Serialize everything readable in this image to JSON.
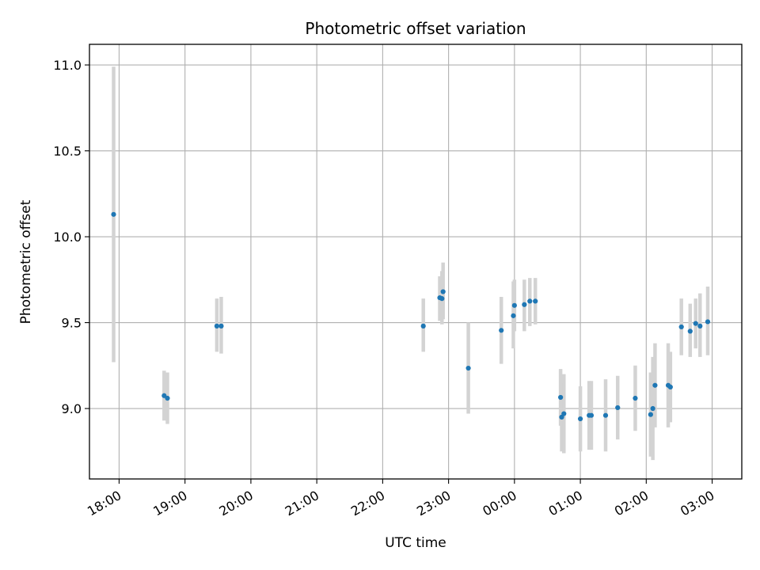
{
  "chart_data": {
    "type": "scatter",
    "title": "Photometric offset variation",
    "xlabel": "UTC time",
    "ylabel": "Photometric offset",
    "x_ticks": [
      "18:00",
      "19:00",
      "20:00",
      "21:00",
      "22:00",
      "23:00",
      "00:00",
      "01:00",
      "02:00",
      "03:00"
    ],
    "y_ticks": [
      "9.0",
      "9.5",
      "10.0",
      "10.5",
      "11.0"
    ],
    "x_range": [
      "17:33",
      "03:27"
    ],
    "ylim": [
      8.59,
      11.12
    ],
    "grid": true,
    "colors": {
      "points": "#1f77b4",
      "error_bars": "#d3d3d3",
      "grid": "#b0b0b0"
    },
    "points": [
      {
        "t": "17:55",
        "y": 10.13,
        "lo": 9.27,
        "hi": 10.99
      },
      {
        "t": "18:41",
        "y": 9.075,
        "lo": 8.93,
        "hi": 9.22
      },
      {
        "t": "18:44",
        "y": 9.06,
        "lo": 8.91,
        "hi": 9.21
      },
      {
        "t": "19:29",
        "y": 9.48,
        "lo": 9.33,
        "hi": 9.64
      },
      {
        "t": "19:33",
        "y": 9.48,
        "lo": 9.32,
        "hi": 9.65
      },
      {
        "t": "22:37",
        "y": 9.48,
        "lo": 9.33,
        "hi": 9.64
      },
      {
        "t": "22:52",
        "y": 9.645,
        "lo": 9.51,
        "hi": 9.77
      },
      {
        "t": "22:54",
        "y": 9.64,
        "lo": 9.49,
        "hi": 9.8
      },
      {
        "t": "22:55",
        "y": 9.68,
        "lo": 9.52,
        "hi": 9.85
      },
      {
        "t": "23:18",
        "y": 9.235,
        "lo": 8.97,
        "hi": 9.5
      },
      {
        "t": "23:48",
        "y": 9.455,
        "lo": 9.26,
        "hi": 9.65
      },
      {
        "t": "23:59",
        "y": 9.54,
        "lo": 9.35,
        "hi": 9.74
      },
      {
        "t": "00:00",
        "y": 9.6,
        "lo": 9.45,
        "hi": 9.75
      },
      {
        "t": "00:09",
        "y": 9.605,
        "lo": 9.45,
        "hi": 9.75
      },
      {
        "t": "00:14",
        "y": 9.625,
        "lo": 9.48,
        "hi": 9.76
      },
      {
        "t": "00:19",
        "y": 9.625,
        "lo": 9.49,
        "hi": 9.76
      },
      {
        "t": "00:42",
        "y": 9.065,
        "lo": 8.9,
        "hi": 9.23
      },
      {
        "t": "00:43",
        "y": 8.95,
        "lo": 8.75,
        "hi": 9.15
      },
      {
        "t": "00:45",
        "y": 8.97,
        "lo": 8.74,
        "hi": 9.2
      },
      {
        "t": "01:00",
        "y": 8.94,
        "lo": 8.75,
        "hi": 9.13
      },
      {
        "t": "01:08",
        "y": 8.96,
        "lo": 8.76,
        "hi": 9.16
      },
      {
        "t": "01:10",
        "y": 8.96,
        "lo": 8.76,
        "hi": 9.16
      },
      {
        "t": "01:23",
        "y": 8.96,
        "lo": 8.75,
        "hi": 9.17
      },
      {
        "t": "01:34",
        "y": 9.005,
        "lo": 8.82,
        "hi": 9.19
      },
      {
        "t": "01:50",
        "y": 9.06,
        "lo": 8.87,
        "hi": 9.25
      },
      {
        "t": "02:04",
        "y": 8.965,
        "lo": 8.72,
        "hi": 9.21
      },
      {
        "t": "02:06",
        "y": 9.0,
        "lo": 8.7,
        "hi": 9.3
      },
      {
        "t": "02:08",
        "y": 9.135,
        "lo": 8.89,
        "hi": 9.38
      },
      {
        "t": "02:20",
        "y": 9.135,
        "lo": 8.89,
        "hi": 9.38
      },
      {
        "t": "02:22",
        "y": 9.125,
        "lo": 8.92,
        "hi": 9.33
      },
      {
        "t": "02:32",
        "y": 9.475,
        "lo": 9.31,
        "hi": 9.64
      },
      {
        "t": "02:40",
        "y": 9.45,
        "lo": 9.3,
        "hi": 9.61
      },
      {
        "t": "02:45",
        "y": 9.495,
        "lo": 9.35,
        "hi": 9.64
      },
      {
        "t": "02:49",
        "y": 9.48,
        "lo": 9.3,
        "hi": 9.67
      },
      {
        "t": "02:56",
        "y": 9.505,
        "lo": 9.31,
        "hi": 9.71
      }
    ]
  }
}
